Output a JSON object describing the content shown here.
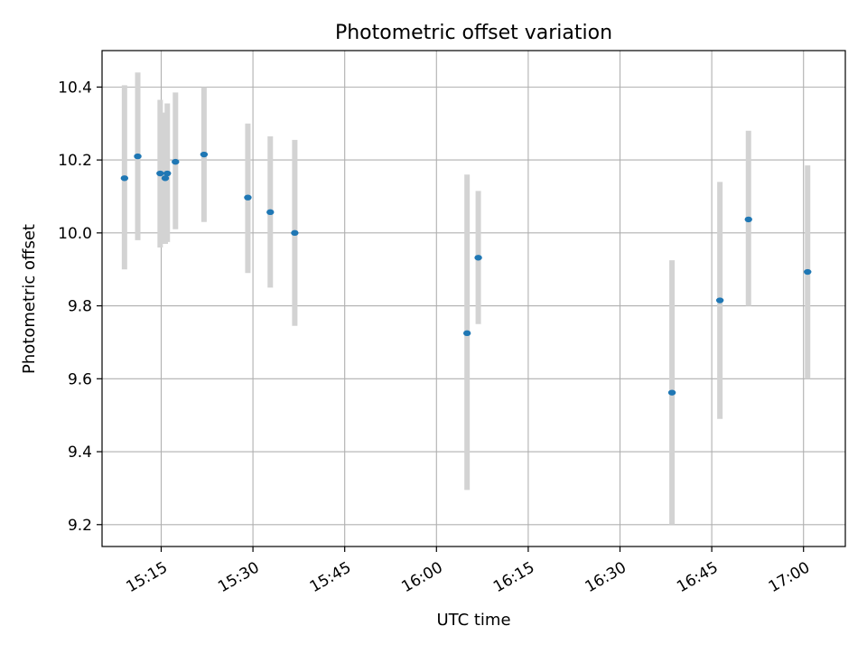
{
  "chart_data": {
    "type": "scatter",
    "title": "Photometric offset variation",
    "xlabel": "UTC time",
    "ylabel": "Photometric offset",
    "grid": true,
    "x_axis_type": "time",
    "xlim": [
      "15:05:20",
      "17:06:50"
    ],
    "ylim": [
      9.14,
      10.5
    ],
    "x_ticks": [
      "15:15",
      "15:30",
      "15:45",
      "16:00",
      "16:15",
      "16:30",
      "16:45",
      "17:00"
    ],
    "y_ticks": [
      9.2,
      9.4,
      9.6,
      9.8,
      10.0,
      10.2,
      10.4
    ],
    "y_tick_labels": [
      "9.2",
      "9.4",
      "9.6",
      "9.8",
      "10.0",
      "10.2",
      "10.4"
    ],
    "marker_color": "#1f77b4",
    "errorbar_color": "#d3d3d3",
    "points": [
      {
        "x": "15:09:00",
        "y": 10.15,
        "yerr_low": 9.9,
        "yerr_high": 10.405
      },
      {
        "x": "15:11:10",
        "y": 10.21,
        "yerr_low": 9.98,
        "yerr_high": 10.44
      },
      {
        "x": "15:14:50",
        "y": 10.163,
        "yerr_low": 9.96,
        "yerr_high": 10.365
      },
      {
        "x": "15:15:40",
        "y": 10.15,
        "yerr_low": 9.97,
        "yerr_high": 10.33
      },
      {
        "x": "15:16:00",
        "y": 10.163,
        "yerr_low": 9.975,
        "yerr_high": 10.355
      },
      {
        "x": "15:17:20",
        "y": 10.195,
        "yerr_low": 10.01,
        "yerr_high": 10.385
      },
      {
        "x": "15:22:00",
        "y": 10.215,
        "yerr_low": 10.03,
        "yerr_high": 10.4
      },
      {
        "x": "15:29:10",
        "y": 10.097,
        "yerr_low": 9.89,
        "yerr_high": 10.3
      },
      {
        "x": "15:32:50",
        "y": 10.057,
        "yerr_low": 9.85,
        "yerr_high": 10.265
      },
      {
        "x": "15:36:50",
        "y": 10.0,
        "yerr_low": 9.745,
        "yerr_high": 10.255
      },
      {
        "x": "16:05:00",
        "y": 9.725,
        "yerr_low": 9.295,
        "yerr_high": 10.16
      },
      {
        "x": "16:06:50",
        "y": 9.932,
        "yerr_low": 9.75,
        "yerr_high": 10.115
      },
      {
        "x": "16:38:30",
        "y": 9.562,
        "yerr_low": 9.2,
        "yerr_high": 9.925
      },
      {
        "x": "16:46:20",
        "y": 9.815,
        "yerr_low": 9.49,
        "yerr_high": 10.14
      },
      {
        "x": "16:51:00",
        "y": 10.037,
        "yerr_low": 9.8,
        "yerr_high": 10.28
      },
      {
        "x": "17:00:40",
        "y": 9.893,
        "yerr_low": 9.6,
        "yerr_high": 10.185
      }
    ]
  }
}
